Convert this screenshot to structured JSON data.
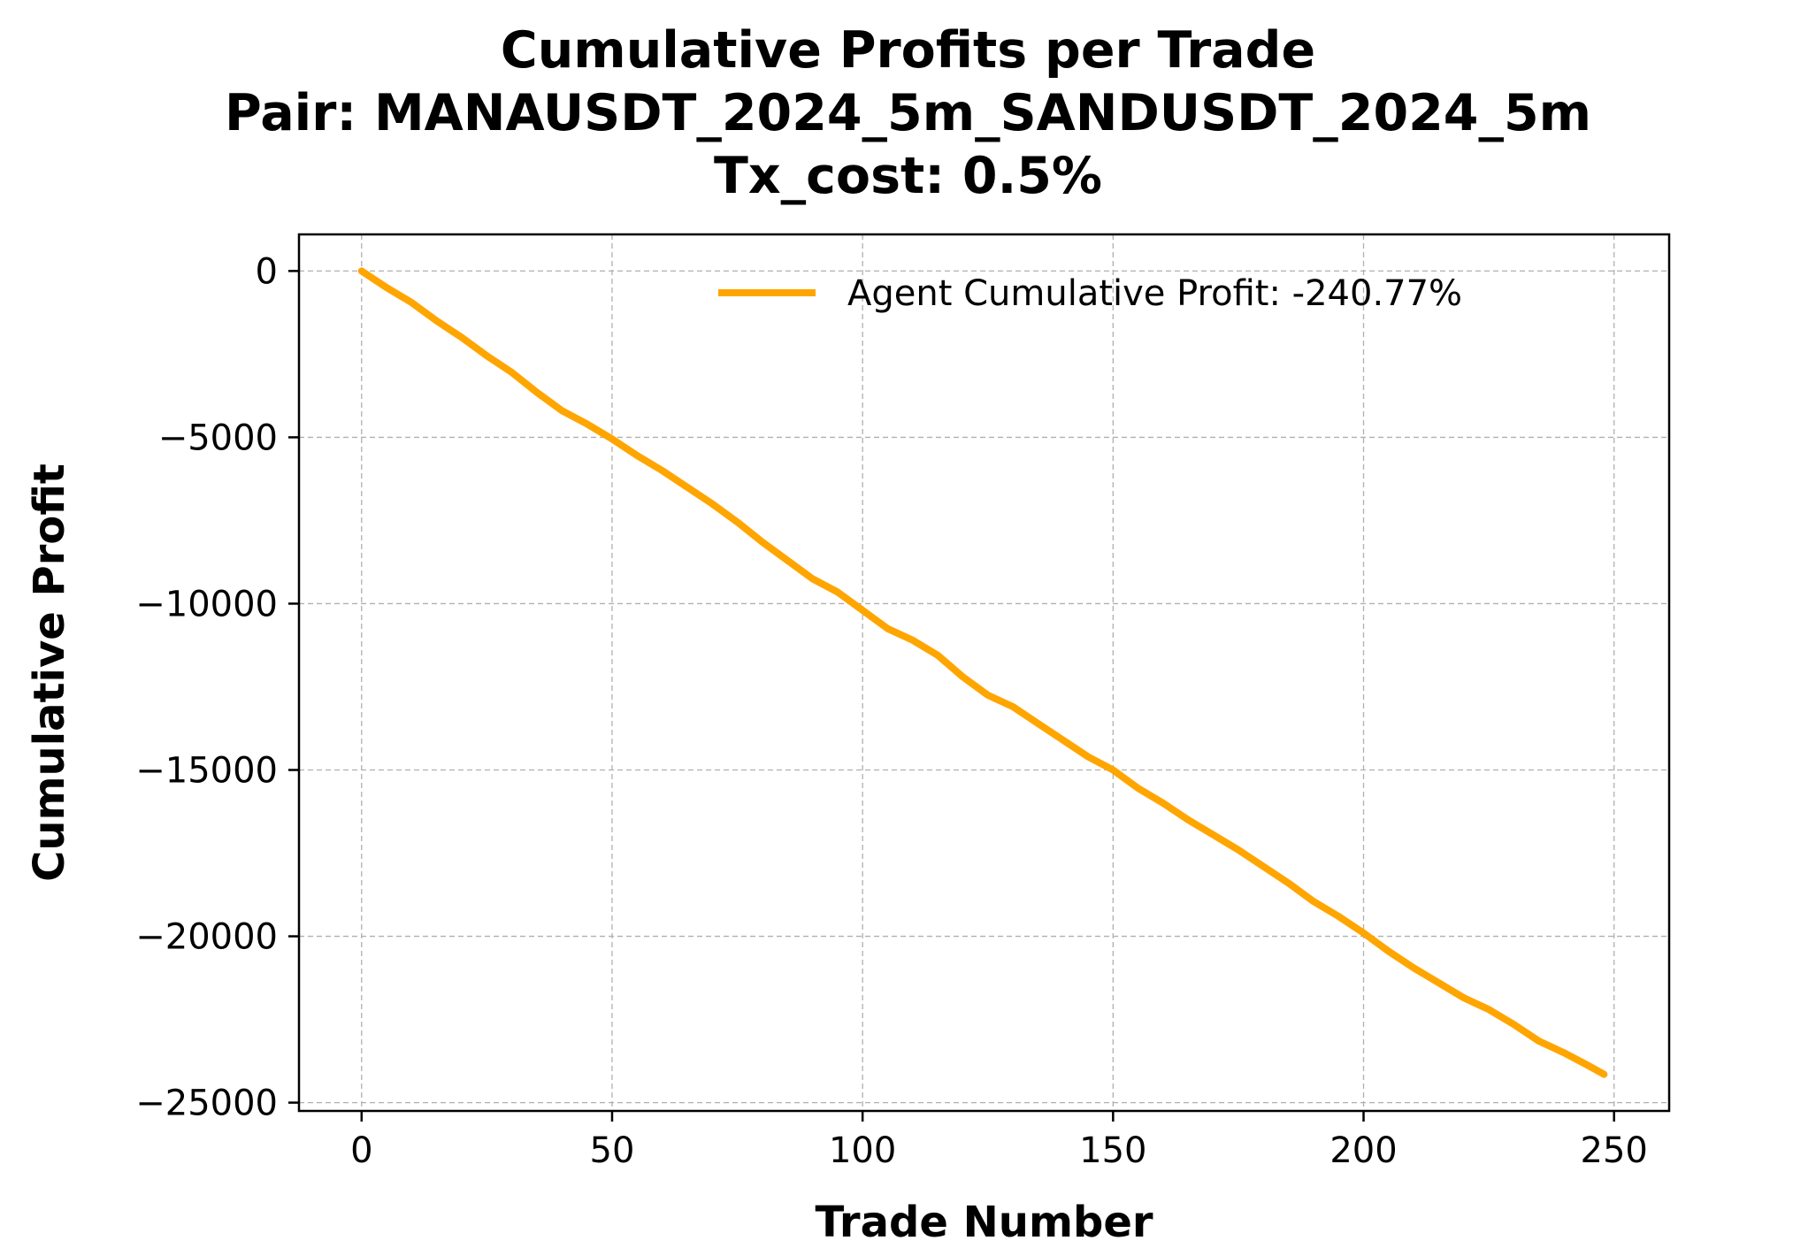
{
  "chart_data": {
    "type": "line",
    "title_lines": [
      "Cumulative Profits per Trade",
      "Pair: MANAUSDT_2024_5m_SANDUSDT_2024_5m",
      "Tx_cost: 0.5%"
    ],
    "xlabel": "Trade Number",
    "ylabel": "Cumulative Profit",
    "xlim": [
      -12.5,
      261
    ],
    "ylim": [
      -25250,
      1100
    ],
    "xticks": [
      0,
      50,
      100,
      150,
      200,
      250
    ],
    "yticks": [
      0,
      -5000,
      -10000,
      -15000,
      -20000,
      -25000
    ],
    "xtick_labels": [
      "0",
      "50",
      "100",
      "150",
      "200",
      "250"
    ],
    "ytick_labels": [
      "0",
      "−5000",
      "−10000",
      "−15000",
      "−20000",
      "−25000"
    ],
    "grid": true,
    "legend_position": "upper-right",
    "series": [
      {
        "name": "Agent Cumulative Profit: -240.77%",
        "color": "#FFA500",
        "x": [
          0,
          5,
          10,
          15,
          20,
          25,
          30,
          35,
          40,
          45,
          50,
          55,
          60,
          65,
          70,
          75,
          80,
          85,
          90,
          95,
          100,
          105,
          110,
          115,
          120,
          125,
          130,
          135,
          140,
          145,
          150,
          155,
          160,
          165,
          170,
          175,
          180,
          185,
          190,
          195,
          200,
          205,
          210,
          215,
          220,
          225,
          230,
          235,
          240,
          245,
          248
        ],
        "y": [
          0,
          -500,
          -950,
          -1500,
          -2000,
          -2550,
          -3050,
          -3650,
          -4200,
          -4600,
          -5050,
          -5550,
          -6000,
          -6500,
          -7000,
          -7550,
          -8150,
          -8700,
          -9250,
          -9650,
          -10200,
          -10750,
          -11100,
          -11550,
          -12200,
          -12750,
          -13100,
          -13600,
          -14100,
          -14600,
          -15000,
          -15550,
          -16000,
          -16500,
          -16950,
          -17400,
          -17900,
          -18400,
          -18950,
          -19400,
          -19900,
          -20450,
          -20950,
          -21400,
          -21850,
          -22200,
          -22650,
          -23150,
          -23500,
          -23900,
          -24150
        ]
      }
    ]
  }
}
